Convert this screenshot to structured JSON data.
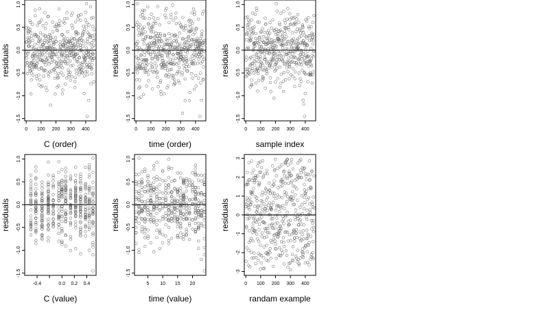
{
  "chart_data": [
    {
      "type": "scatter",
      "panel": "top-left",
      "xlabel": "C (order)",
      "ylabel": "residuals",
      "xlim": [
        -10,
        470
      ],
      "ylim": [
        -1.55,
        1.1
      ],
      "xticks": [
        0,
        100,
        200,
        300,
        400
      ],
      "xtick_labels": [
        "0",
        "100",
        "200",
        "300",
        "400"
      ],
      "yticks": [
        -1.5,
        -1.0,
        -0.5,
        0.0,
        0.5,
        1.0
      ],
      "ytick_labels": [
        "-1.5",
        "-1.0",
        "-0.5",
        "0.0",
        "0.5",
        "1.0"
      ],
      "hline": 0,
      "x_spec": "index",
      "seed": 11,
      "points": [
        [
          405,
          1.02
        ],
        [
          410,
          -1.45
        ],
        [
          370,
          0.78
        ],
        [
          440,
          0.7
        ],
        [
          420,
          -1.1
        ],
        [
          390,
          -0.95
        ],
        [
          100,
          -0.8
        ],
        [
          25,
          0.65
        ],
        [
          250,
          0.62
        ],
        [
          330,
          -0.6
        ]
      ]
    },
    {
      "type": "scatter",
      "panel": "top-middle",
      "xlabel": "time (order)",
      "ylabel": "residuals",
      "xlim": [
        -10,
        470
      ],
      "ylim": [
        -1.55,
        1.1
      ],
      "xticks": [
        0,
        100,
        200,
        300,
        400
      ],
      "xtick_labels": [
        "0",
        "100",
        "200",
        "300",
        "400"
      ],
      "yticks": [
        -1.5,
        -1.0,
        -0.5,
        0.0,
        0.5,
        1.0
      ],
      "ytick_labels": [
        "-1.5",
        "-1.0",
        "-0.5",
        "0.0",
        "0.5",
        "1.0"
      ],
      "hline": 0,
      "x_spec": "index",
      "seed": 23,
      "points": [
        [
          10,
          1.02
        ],
        [
          45,
          0.78
        ],
        [
          430,
          -1.45
        ],
        [
          20,
          -1.05
        ],
        [
          440,
          -1.1
        ],
        [
          60,
          0.7
        ],
        [
          420,
          0.68
        ],
        [
          300,
          0.55
        ],
        [
          150,
          -0.8
        ],
        [
          110,
          -0.85
        ]
      ]
    },
    {
      "type": "scatter",
      "panel": "top-right",
      "xlabel": "sample index",
      "ylabel": "residuals",
      "xlim": [
        -10,
        470
      ],
      "ylim": [
        -1.55,
        1.1
      ],
      "xticks": [
        0,
        100,
        200,
        300,
        400
      ],
      "xtick_labels": [
        "0",
        "100",
        "200",
        "300",
        "400"
      ],
      "yticks": [
        -1.5,
        -1.0,
        -0.5,
        0.0,
        0.5,
        1.0
      ],
      "ytick_labels": [
        "-1.5",
        "-1.0",
        "-0.5",
        "0.0",
        "0.5",
        "1.0"
      ],
      "hline": 0,
      "x_spec": "index",
      "seed": 37,
      "points": [
        [
          205,
          1.02
        ],
        [
          395,
          -1.45
        ],
        [
          385,
          -1.1
        ],
        [
          190,
          -1.05
        ],
        [
          400,
          -0.95
        ],
        [
          210,
          0.85
        ],
        [
          330,
          0.72
        ],
        [
          130,
          0.7
        ],
        [
          350,
          0.78
        ],
        [
          40,
          -0.75
        ]
      ]
    },
    {
      "type": "scatter",
      "panel": "bottom-left",
      "xlabel": "C (value)",
      "ylabel": "residuals",
      "xlim": [
        -0.6,
        0.55
      ],
      "ylim": [
        -1.55,
        1.1
      ],
      "xticks": [
        -0.4,
        0.0,
        0.2,
        0.4
      ],
      "xtick_labels": [
        "-0.4",
        "0.0",
        "0.2",
        "0.4"
      ],
      "extra_xticks": [
        -0.2
      ],
      "yticks": [
        -1.5,
        -1.0,
        -0.5,
        0.0,
        0.5,
        1.0
      ],
      "ytick_labels": [
        "-1.5",
        "-1.0",
        "-0.5",
        "0.0",
        "0.5",
        "1.0"
      ],
      "hline": 0,
      "x_spec": "levels",
      "x_levels": [
        -0.5,
        -0.42,
        -0.32,
        -0.22,
        -0.14,
        -0.05,
        0.0,
        0.06,
        0.14,
        0.22,
        0.3,
        0.38,
        0.44,
        0.5
      ],
      "seed": 53,
      "points": [
        [
          0.5,
          1.02
        ],
        [
          0.5,
          -1.45
        ],
        [
          0.5,
          -1.1
        ],
        [
          0.44,
          0.82
        ],
        [
          -0.5,
          0.65
        ],
        [
          0.3,
          0.62
        ],
        [
          -0.05,
          -0.8
        ],
        [
          0.14,
          -0.7
        ],
        [
          -0.42,
          -0.85
        ],
        [
          0.44,
          -1.0
        ]
      ]
    },
    {
      "type": "scatter",
      "panel": "bottom-middle",
      "xlabel": "time (value)",
      "ylabel": "residuals",
      "xlim": [
        0.5,
        24.5
      ],
      "ylim": [
        -1.55,
        1.1
      ],
      "xticks": [
        5,
        10,
        15,
        20
      ],
      "xtick_labels": [
        "5",
        "10",
        "15",
        "20"
      ],
      "yticks": [
        -1.5,
        -1.0,
        -0.5,
        0.0,
        0.5,
        1.0
      ],
      "ytick_labels": [
        "-1.5",
        "-1.0",
        "-0.5",
        "0.0",
        "0.5",
        "1.0"
      ],
      "hline": 0,
      "x_spec": "levels",
      "x_levels": [
        1,
        2,
        3,
        4,
        5,
        6,
        7,
        8,
        9,
        10,
        11,
        12,
        13,
        14,
        15,
        16,
        17,
        18,
        19,
        20,
        21,
        22,
        23,
        24
      ],
      "seed": 71,
      "points": [
        [
          2,
          1.02
        ],
        [
          24,
          -1.45
        ],
        [
          24,
          -1.1
        ],
        [
          4,
          0.78
        ],
        [
          12,
          0.82
        ],
        [
          2,
          -1.05
        ],
        [
          12,
          -0.85
        ],
        [
          8,
          -0.72
        ],
        [
          20,
          0.7
        ],
        [
          17,
          0.55
        ]
      ]
    },
    {
      "type": "scatter",
      "panel": "bottom-right",
      "xlabel": "randam example",
      "ylabel": "residuals",
      "xlim": [
        -10,
        470
      ],
      "ylim": [
        -3.2,
        3.2
      ],
      "xticks": [
        0,
        100,
        200,
        300,
        400
      ],
      "xtick_labels": [
        "0",
        "100",
        "200",
        "300",
        "400"
      ],
      "yticks": [
        -3,
        -2,
        -1,
        0,
        1,
        2,
        3
      ],
      "ytick_labels": [
        "-3",
        "-2",
        "-1",
        "0",
        "1",
        "2",
        "3"
      ],
      "hline": 0,
      "x_spec": "index",
      "seed": 97,
      "scale": 2.3,
      "points": [
        [
          280,
          2.95
        ],
        [
          270,
          2.8
        ],
        [
          350,
          2.75
        ],
        [
          300,
          -2.9
        ],
        [
          230,
          2.55
        ],
        [
          180,
          2.6
        ],
        [
          400,
          -2.55
        ],
        [
          140,
          -2.4
        ],
        [
          50,
          1.95
        ],
        [
          380,
          -2.2
        ]
      ]
    }
  ]
}
